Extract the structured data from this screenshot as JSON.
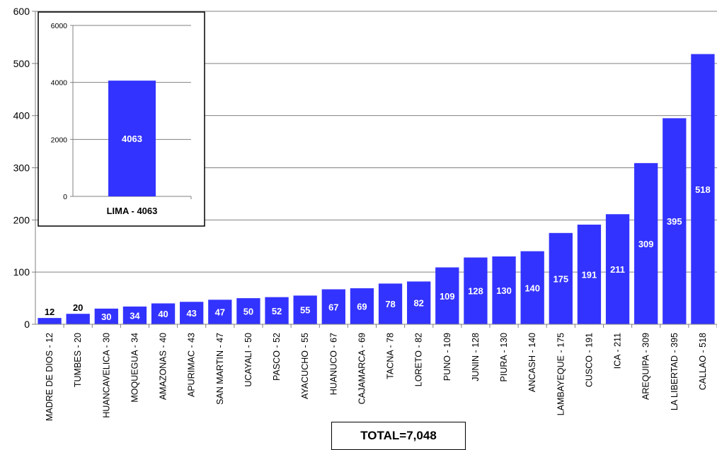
{
  "chart_data": [
    {
      "type": "bar",
      "categories": [
        "MADRE DE DIOS - 12",
        "TUMBES - 20",
        "HUANCAVELICA - 30",
        "MOQUEGUA - 34",
        "AMAZONAS - 40",
        "APURIMAC - 43",
        "SAN MARTIN - 47",
        "UCAYALI - 50",
        "PASCO - 52",
        "AYACUCHO - 55",
        "HUANUCO - 67",
        "CAJAMARCA - 69",
        "TACNA - 78",
        "LORETO - 82",
        "PUNO - 109",
        "JUNIN - 128",
        "PIURA - 130",
        "ANCASH - 140",
        "LAMBAYEQUE - 175",
        "CUSCO - 191",
        "ICA - 211",
        "AREQUIPA - 309",
        "LA LIBERTAD - 395",
        "CALLAO - 518"
      ],
      "values": [
        12,
        20,
        30,
        34,
        40,
        43,
        47,
        50,
        52,
        55,
        67,
        69,
        78,
        82,
        109,
        128,
        130,
        140,
        175,
        191,
        211,
        309,
        395,
        518
      ],
      "data_labels": [
        "12",
        "20",
        "30",
        "34",
        "40",
        "43",
        "47",
        "50",
        "52",
        "55",
        "67",
        "69",
        "78",
        "82",
        "109",
        "128",
        "130",
        "140",
        "175",
        "191",
        "211",
        "309",
        "395",
        "518"
      ],
      "ylim": [
        0,
        600
      ],
      "yticks": [
        0,
        100,
        200,
        300,
        400,
        500,
        600
      ],
      "grid": true,
      "bar_color": "#3333FF"
    },
    {
      "type": "bar",
      "categories": [
        "LIMA - 4063"
      ],
      "values": [
        4063
      ],
      "data_labels": [
        "4063"
      ],
      "ylim": [
        0,
        6000
      ],
      "yticks": [
        0,
        2000,
        4000,
        6000
      ],
      "grid": true,
      "bar_color": "#3333FF"
    }
  ],
  "total_label": "TOTAL=7,048"
}
